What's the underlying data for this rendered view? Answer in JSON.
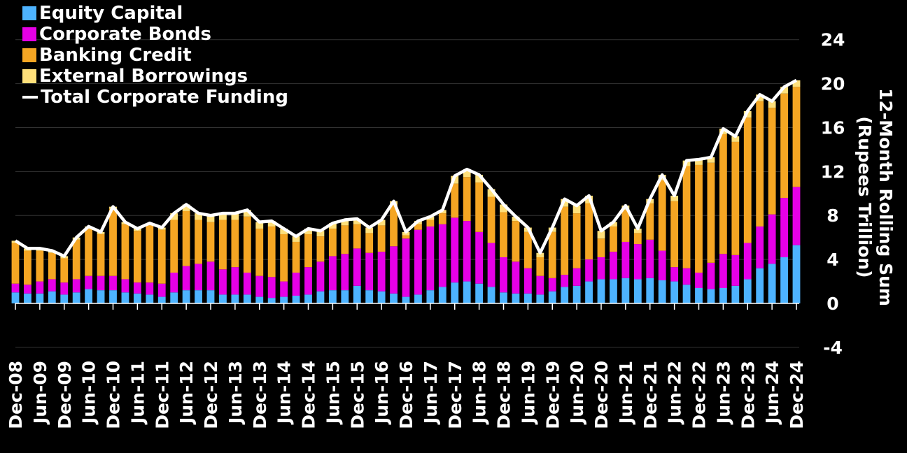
{
  "chart_data": {
    "type": "bar",
    "stacked": true,
    "title": "",
    "xlabel": "",
    "ylabel": "12-Month Rolling Sum (Rupees Trillion)",
    "ylabel_lines": [
      "12-Month Rolling Sum",
      "(Rupees Trillion)"
    ],
    "ylim": [
      -4,
      24
    ],
    "yticks": [
      -4,
      0,
      4,
      8,
      12,
      16,
      20,
      24
    ],
    "xtick_labels": [
      "Dec-08",
      "Jun-09",
      "Dec-09",
      "Jun-10",
      "Dec-10",
      "Jun-11",
      "Dec-11",
      "Jun-12",
      "Dec-12",
      "Jun-13",
      "Dec-13",
      "Jun-14",
      "Dec-14",
      "Jun-15",
      "Dec-15",
      "Jun-16",
      "Dec-16",
      "Jun-17",
      "Dec-17",
      "Jun-18",
      "Dec-18",
      "Jun-19",
      "Dec-19",
      "Jun-20",
      "Dec-20",
      "Jun-21",
      "Dec-21",
      "Jun-22",
      "Dec-22",
      "Jun-23",
      "Dec-23",
      "Jun-24",
      "Dec-24"
    ],
    "x_frequency": "quarterly, Dec-08 to Dec-24",
    "legend_position": "top-left",
    "grid": true,
    "series": [
      {
        "name": "Equity Capital",
        "color": "#4db3ff",
        "values": [
          1.0,
          0.9,
          0.9,
          1.1,
          0.8,
          1.0,
          1.3,
          1.2,
          1.2,
          1.0,
          0.9,
          0.8,
          0.6,
          1.0,
          1.2,
          1.2,
          1.2,
          0.8,
          0.8,
          0.8,
          0.6,
          0.5,
          0.6,
          0.7,
          0.8,
          1.1,
          1.2,
          1.2,
          1.6,
          1.2,
          1.1,
          0.9,
          0.6,
          0.8,
          1.2,
          1.5,
          1.9,
          2.0,
          1.8,
          1.5,
          1.0,
          0.9,
          0.9,
          0.8,
          1.1,
          1.5,
          1.6,
          2.0,
          2.2,
          2.2,
          2.3,
          2.2,
          2.3,
          2.1,
          2.0,
          1.7,
          1.4,
          1.3,
          1.4,
          1.6,
          2.2,
          3.2,
          3.6,
          4.2,
          5.3
        ]
      },
      {
        "name": "Corporate Bonds",
        "color": "#e600e6",
        "values": [
          0.8,
          0.8,
          1.1,
          1.1,
          1.1,
          1.2,
          1.2,
          1.3,
          1.3,
          1.2,
          1.0,
          1.1,
          1.2,
          1.8,
          2.2,
          2.4,
          2.6,
          2.3,
          2.5,
          2.0,
          1.9,
          1.9,
          1.4,
          2.1,
          2.5,
          2.7,
          3.1,
          3.3,
          3.4,
          3.4,
          3.6,
          4.3,
          5.3,
          5.9,
          5.8,
          5.7,
          5.9,
          5.5,
          4.7,
          4.0,
          3.2,
          2.9,
          2.3,
          1.7,
          1.2,
          1.1,
          1.6,
          2.0,
          2.0,
          2.5,
          3.3,
          3.2,
          3.5,
          2.7,
          1.3,
          1.5,
          1.4,
          2.4,
          3.1,
          2.8,
          3.3,
          3.8,
          4.5,
          5.4,
          5.3
        ]
      },
      {
        "name": "Banking Credit",
        "color": "#f5a623",
        "values": [
          3.7,
          3.1,
          2.8,
          2.4,
          2.2,
          3.6,
          4.3,
          3.8,
          6.1,
          5.0,
          4.7,
          5.2,
          4.9,
          4.8,
          5.0,
          4.0,
          3.6,
          4.5,
          4.3,
          5.1,
          4.3,
          4.6,
          4.3,
          2.8,
          3.0,
          2.3,
          2.5,
          2.6,
          2.2,
          1.8,
          2.4,
          3.8,
          0.3,
          0.5,
          0.6,
          1.0,
          3.1,
          4.0,
          4.5,
          4.2,
          4.1,
          3.7,
          3.3,
          1.7,
          4.2,
          6.2,
          5.0,
          5.1,
          1.7,
          2.3,
          2.9,
          1.0,
          3.3,
          6.4,
          6.0,
          9.3,
          9.8,
          9.1,
          10.9,
          10.3,
          11.4,
          11.4,
          9.7,
          9.5,
          9.1
        ]
      },
      {
        "name": "External Borrowings",
        "color": "#ffe07a",
        "values": [
          0.2,
          0.2,
          0.2,
          0.2,
          0.2,
          0.2,
          0.2,
          0.2,
          0.2,
          0.2,
          0.2,
          0.2,
          0.2,
          0.6,
          0.6,
          0.6,
          0.6,
          0.6,
          0.6,
          0.6,
          0.6,
          0.5,
          0.5,
          0.5,
          0.5,
          0.5,
          0.5,
          0.5,
          0.5,
          0.5,
          0.5,
          0.3,
          0.3,
          0.3,
          0.3,
          0.3,
          0.7,
          0.7,
          0.7,
          0.7,
          0.7,
          0.4,
          0.4,
          0.4,
          0.4,
          0.7,
          0.7,
          0.7,
          0.7,
          0.4,
          0.4,
          0.4,
          0.4,
          0.5,
          0.5,
          0.5,
          0.5,
          0.5,
          0.5,
          0.5,
          0.6,
          0.6,
          0.6,
          0.6,
          0.6
        ]
      }
    ],
    "line": {
      "name": "Total Corporate Funding",
      "color": "#ffffff",
      "values": [
        5.7,
        5.0,
        5.0,
        4.8,
        4.3,
        6.0,
        7.0,
        6.5,
        8.8,
        7.4,
        6.8,
        7.3,
        6.9,
        8.2,
        9.0,
        8.2,
        8.0,
        8.2,
        8.2,
        8.5,
        7.4,
        7.5,
        6.8,
        6.1,
        6.8,
        6.6,
        7.3,
        7.6,
        7.7,
        6.9,
        7.6,
        9.3,
        6.5,
        7.5,
        7.9,
        8.5,
        11.6,
        12.2,
        11.7,
        10.4,
        9.0,
        7.9,
        6.9,
        4.6,
        6.9,
        9.5,
        8.9,
        9.8,
        6.6,
        7.4,
        8.9,
        6.8,
        9.5,
        11.7,
        9.8,
        13.0,
        13.1,
        13.3,
        15.9,
        15.2,
        17.5,
        19.0,
        18.4,
        19.7,
        20.3
      ]
    }
  }
}
